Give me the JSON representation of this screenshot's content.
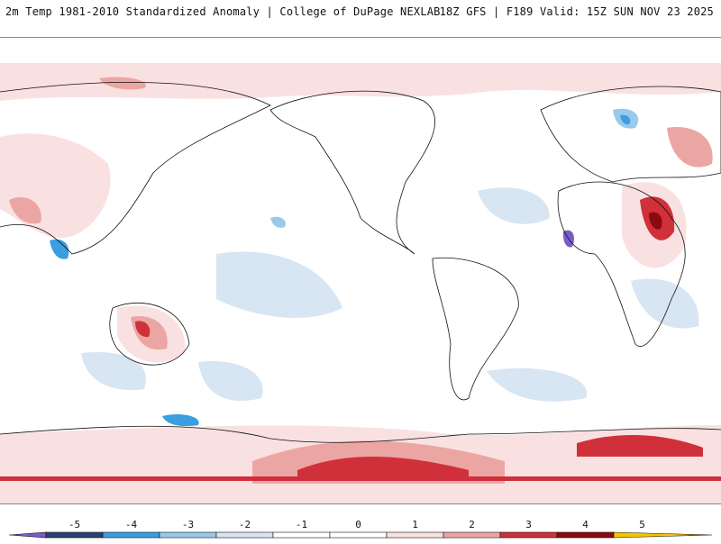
{
  "header": {
    "title_left": "2m Temp 1981-2010 Standardized Anomaly | College of DuPage NEXLAB",
    "title_right": "18Z GFS | F189 Valid: 15Z SUN NOV 23 2025"
  },
  "colorbar": {
    "ticks": [
      "-5",
      "-4",
      "-3",
      "-2",
      "-1",
      "0",
      "1",
      "2",
      "3",
      "4",
      "5"
    ],
    "colors": [
      "#7a5cc8",
      "#2c4172",
      "#3a9ee0",
      "#9ac9ec",
      "#d8e5f2",
      "#ffffff",
      "#ffffff",
      "#fae1e1",
      "#eba6a3",
      "#d0303a",
      "#8a0a10",
      "#f5c400"
    ]
  },
  "map": {
    "colors": {
      "pink": "#fae1e1",
      "salmon": "#eba6a3",
      "red": "#d0303a",
      "darkred": "#8a0a10",
      "paleblue": "#d8e5f2",
      "lightblue": "#9ac9ec",
      "blue": "#3a9ee0",
      "navy": "#2c4172",
      "purple": "#7a5cc8",
      "yellow": "#f5c400"
    }
  }
}
